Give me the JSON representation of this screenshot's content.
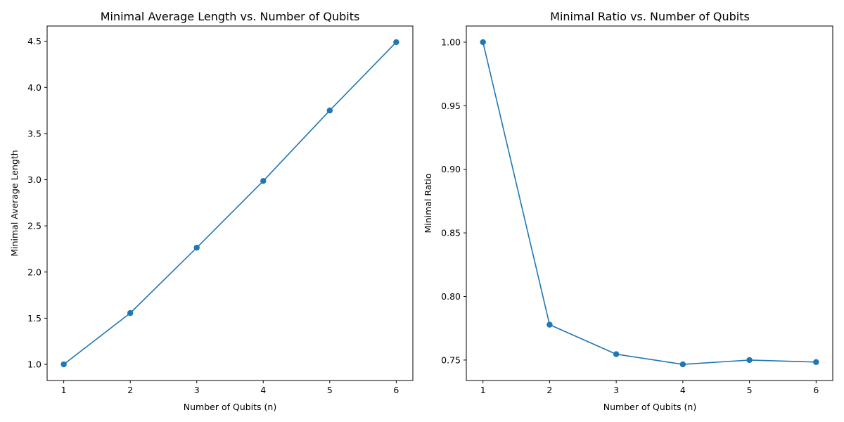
{
  "chart_data": [
    {
      "type": "line",
      "title": "Minimal Average Length vs. Number of Qubits",
      "xlabel": "Number of Qubits (n)",
      "ylabel": "Minimal Average Length",
      "x": [
        1,
        2,
        3,
        4,
        5,
        6
      ],
      "series": [
        {
          "values": [
            1.0,
            1.5556,
            2.2639,
            2.9862,
            3.75,
            4.4901
          ],
          "color": "#1f77b4"
        }
      ],
      "xticks": [
        "1",
        "2",
        "3",
        "4",
        "5",
        "6"
      ],
      "xtick_values": [
        1,
        2,
        3,
        4,
        5,
        6
      ],
      "yticks": [
        "1.0",
        "1.5",
        "2.0",
        "2.5",
        "3.0",
        "3.5",
        "4.0",
        "4.5"
      ],
      "ytick_values": [
        1.0,
        1.5,
        2.0,
        2.5,
        3.0,
        3.5,
        4.0,
        4.5
      ],
      "xlim": [
        0.75,
        6.25
      ],
      "ylim": [
        0.825,
        4.665
      ],
      "grid": false,
      "marker": "circle"
    },
    {
      "type": "line",
      "title": "Minimal Ratio vs. Number of Qubits",
      "xlabel": "Number of Qubits (n)",
      "ylabel": "Minimal Ratio",
      "x": [
        1,
        2,
        3,
        4,
        5,
        6
      ],
      "series": [
        {
          "values": [
            1.0,
            0.7778,
            0.7546,
            0.7466,
            0.75,
            0.7484
          ],
          "color": "#1f77b4"
        }
      ],
      "xticks": [
        "1",
        "2",
        "3",
        "4",
        "5",
        "6"
      ],
      "xtick_values": [
        1,
        2,
        3,
        4,
        5,
        6
      ],
      "yticks": [
        "0.75",
        "0.80",
        "0.85",
        "0.90",
        "0.95",
        "1.00"
      ],
      "ytick_values": [
        0.75,
        0.8,
        0.85,
        0.9,
        0.95,
        1.0
      ],
      "xlim": [
        0.75,
        6.25
      ],
      "ylim": [
        0.7339,
        1.0127
      ],
      "grid": false,
      "marker": "circle"
    }
  ]
}
